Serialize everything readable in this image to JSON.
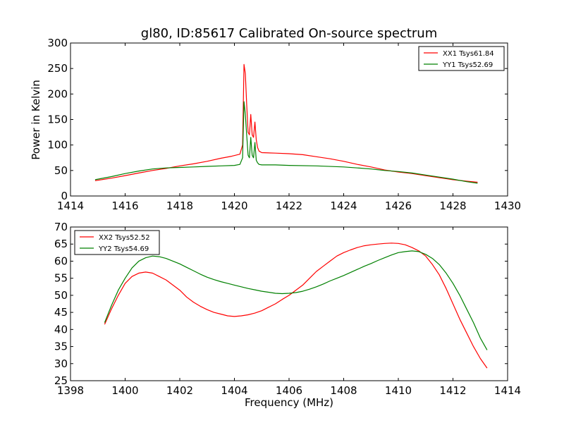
{
  "chart_data": [
    {
      "type": "line",
      "title": "gl80, ID:85617 Calibrated On-source spectrum",
      "xlabel": "",
      "ylabel": "Power in Kelvin",
      "xlim": [
        1414,
        1430
      ],
      "ylim": [
        0,
        300
      ],
      "xticks": [
        "1414",
        "1416",
        "1418",
        "1420",
        "1422",
        "1424",
        "1426",
        "1428",
        "1430"
      ],
      "yticks": [
        "0",
        "50",
        "100",
        "150",
        "200",
        "250",
        "300"
      ],
      "legend_position": "top-right",
      "grid": false,
      "series": [
        {
          "name": "XX1 Tsys61.84",
          "color": "#ff0000",
          "points": [
            [
              1414.9,
              30
            ],
            [
              1415.5,
              35
            ],
            [
              1416.0,
              40
            ],
            [
              1416.5,
              45
            ],
            [
              1417.0,
              50
            ],
            [
              1417.5,
              54
            ],
            [
              1418.0,
              59
            ],
            [
              1418.5,
              63
            ],
            [
              1419.0,
              68
            ],
            [
              1419.5,
              74
            ],
            [
              1419.9,
              78
            ],
            [
              1420.2,
              82
            ],
            [
              1420.3,
              100
            ],
            [
              1420.35,
              258
            ],
            [
              1420.4,
              240
            ],
            [
              1420.45,
              180
            ],
            [
              1420.5,
              125
            ],
            [
              1420.55,
              120
            ],
            [
              1420.6,
              160
            ],
            [
              1420.65,
              120
            ],
            [
              1420.7,
              115
            ],
            [
              1420.75,
              145
            ],
            [
              1420.8,
              110
            ],
            [
              1420.85,
              95
            ],
            [
              1420.9,
              88
            ],
            [
              1421.0,
              85
            ],
            [
              1421.5,
              84
            ],
            [
              1422.0,
              83
            ],
            [
              1422.5,
              81
            ],
            [
              1423.0,
              77
            ],
            [
              1423.5,
              73
            ],
            [
              1424.0,
              68
            ],
            [
              1424.5,
              62
            ],
            [
              1425.0,
              57
            ],
            [
              1425.5,
              51
            ],
            [
              1426.0,
              47
            ],
            [
              1426.5,
              44
            ],
            [
              1427.0,
              40
            ],
            [
              1427.5,
              36
            ],
            [
              1428.0,
              32
            ],
            [
              1428.5,
              29
            ],
            [
              1428.9,
              27
            ]
          ]
        },
        {
          "name": "YY1 Tsys52.69",
          "color": "#008000",
          "points": [
            [
              1414.9,
              32
            ],
            [
              1415.5,
              38
            ],
            [
              1416.0,
              44
            ],
            [
              1416.5,
              49
            ],
            [
              1417.0,
              53
            ],
            [
              1417.5,
              55
            ],
            [
              1418.0,
              56
            ],
            [
              1418.5,
              57
            ],
            [
              1419.0,
              58
            ],
            [
              1419.5,
              59
            ],
            [
              1420.0,
              60
            ],
            [
              1420.2,
              62
            ],
            [
              1420.3,
              75
            ],
            [
              1420.35,
              185
            ],
            [
              1420.4,
              160
            ],
            [
              1420.45,
              120
            ],
            [
              1420.5,
              80
            ],
            [
              1420.55,
              75
            ],
            [
              1420.6,
              115
            ],
            [
              1420.65,
              80
            ],
            [
              1420.7,
              75
            ],
            [
              1420.75,
              105
            ],
            [
              1420.8,
              70
            ],
            [
              1420.85,
              65
            ],
            [
              1420.9,
              62
            ],
            [
              1421.0,
              61
            ],
            [
              1421.5,
              61
            ],
            [
              1422.0,
              60
            ],
            [
              1423.0,
              59
            ],
            [
              1424.0,
              57
            ],
            [
              1424.5,
              55
            ],
            [
              1425.0,
              53
            ],
            [
              1425.5,
              50
            ],
            [
              1426.0,
              48
            ],
            [
              1426.5,
              45
            ],
            [
              1427.0,
              41
            ],
            [
              1427.5,
              37
            ],
            [
              1428.0,
              33
            ],
            [
              1428.5,
              28
            ],
            [
              1428.9,
              25
            ]
          ]
        }
      ]
    },
    {
      "type": "line",
      "title": "",
      "xlabel": "Frequency (MHz)",
      "ylabel": "",
      "xlim": [
        1398,
        1414
      ],
      "ylim": [
        25,
        70
      ],
      "xticks": [
        "1398",
        "1400",
        "1402",
        "1404",
        "1406",
        "1408",
        "1410",
        "1412",
        "1414"
      ],
      "yticks": [
        "25",
        "30",
        "35",
        "40",
        "45",
        "50",
        "55",
        "60",
        "65",
        "70"
      ],
      "legend_position": "top-left",
      "grid": false,
      "series": [
        {
          "name": "XX2 Tsys52.52",
          "color": "#ff0000",
          "points": [
            [
              1399.25,
              41.5
            ],
            [
              1399.5,
              46
            ],
            [
              1399.75,
              50
            ],
            [
              1400.0,
              53.5
            ],
            [
              1400.25,
              55.5
            ],
            [
              1400.5,
              56.5
            ],
            [
              1400.75,
              56.8
            ],
            [
              1401.0,
              56.5
            ],
            [
              1401.25,
              55.5
            ],
            [
              1401.5,
              54.5
            ],
            [
              1401.75,
              53
            ],
            [
              1402.0,
              51.5
            ],
            [
              1402.25,
              49.5
            ],
            [
              1402.5,
              48
            ],
            [
              1402.75,
              46.8
            ],
            [
              1403.0,
              45.8
            ],
            [
              1403.25,
              45
            ],
            [
              1403.5,
              44.5
            ],
            [
              1403.75,
              44
            ],
            [
              1404.0,
              43.8
            ],
            [
              1404.25,
              44
            ],
            [
              1404.5,
              44.3
            ],
            [
              1404.75,
              44.8
            ],
            [
              1405.0,
              45.5
            ],
            [
              1405.25,
              46.5
            ],
            [
              1405.5,
              47.5
            ],
            [
              1405.75,
              48.8
            ],
            [
              1406.0,
              50
            ],
            [
              1406.25,
              51.5
            ],
            [
              1406.5,
              53
            ],
            [
              1406.75,
              55
            ],
            [
              1407.0,
              57
            ],
            [
              1407.25,
              58.5
            ],
            [
              1407.5,
              60
            ],
            [
              1407.75,
              61.5
            ],
            [
              1408.0,
              62.5
            ],
            [
              1408.25,
              63.3
            ],
            [
              1408.5,
              64
            ],
            [
              1408.75,
              64.5
            ],
            [
              1409.0,
              64.8
            ],
            [
              1409.25,
              65
            ],
            [
              1409.5,
              65.2
            ],
            [
              1409.75,
              65.3
            ],
            [
              1410.0,
              65.2
            ],
            [
              1410.25,
              64.8
            ],
            [
              1410.5,
              64
            ],
            [
              1410.75,
              63
            ],
            [
              1411.0,
              61.5
            ],
            [
              1411.25,
              59
            ],
            [
              1411.5,
              56
            ],
            [
              1411.75,
              52
            ],
            [
              1412.0,
              47.5
            ],
            [
              1412.25,
              43
            ],
            [
              1412.5,
              39
            ],
            [
              1412.75,
              35
            ],
            [
              1413.0,
              31.5
            ],
            [
              1413.25,
              28.7
            ]
          ]
        },
        {
          "name": "YY2 Tsys54.69",
          "color": "#008000",
          "points": [
            [
              1399.25,
              42
            ],
            [
              1399.5,
              47
            ],
            [
              1399.75,
              51.5
            ],
            [
              1400.0,
              55
            ],
            [
              1400.25,
              58
            ],
            [
              1400.5,
              60
            ],
            [
              1400.75,
              61
            ],
            [
              1401.0,
              61.5
            ],
            [
              1401.25,
              61.3
            ],
            [
              1401.5,
              60.8
            ],
            [
              1401.75,
              60
            ],
            [
              1402.0,
              59.2
            ],
            [
              1402.25,
              58.2
            ],
            [
              1402.5,
              57.2
            ],
            [
              1402.75,
              56.2
            ],
            [
              1403.0,
              55.3
            ],
            [
              1403.25,
              54.6
            ],
            [
              1403.5,
              54
            ],
            [
              1403.75,
              53.5
            ],
            [
              1404.0,
              53
            ],
            [
              1404.25,
              52.5
            ],
            [
              1404.5,
              52
            ],
            [
              1404.75,
              51.6
            ],
            [
              1405.0,
              51.2
            ],
            [
              1405.25,
              50.9
            ],
            [
              1405.5,
              50.6
            ],
            [
              1405.75,
              50.5
            ],
            [
              1406.0,
              50.6
            ],
            [
              1406.25,
              50.8
            ],
            [
              1406.5,
              51.2
            ],
            [
              1406.75,
              51.8
            ],
            [
              1407.0,
              52.5
            ],
            [
              1407.25,
              53.3
            ],
            [
              1407.5,
              54.2
            ],
            [
              1407.75,
              55
            ],
            [
              1408.0,
              55.8
            ],
            [
              1408.25,
              56.7
            ],
            [
              1408.5,
              57.6
            ],
            [
              1408.75,
              58.5
            ],
            [
              1409.0,
              59.3
            ],
            [
              1409.25,
              60.2
            ],
            [
              1409.5,
              61
            ],
            [
              1409.75,
              61.8
            ],
            [
              1410.0,
              62.5
            ],
            [
              1410.25,
              62.8
            ],
            [
              1410.5,
              63
            ],
            [
              1410.75,
              62.8
            ],
            [
              1411.0,
              62
            ],
            [
              1411.25,
              60.8
            ],
            [
              1411.5,
              59
            ],
            [
              1411.75,
              56.5
            ],
            [
              1412.0,
              53.5
            ],
            [
              1412.25,
              50
            ],
            [
              1412.5,
              46
            ],
            [
              1412.75,
              42
            ],
            [
              1413.0,
              37.5
            ],
            [
              1413.25,
              34
            ]
          ]
        }
      ]
    }
  ]
}
